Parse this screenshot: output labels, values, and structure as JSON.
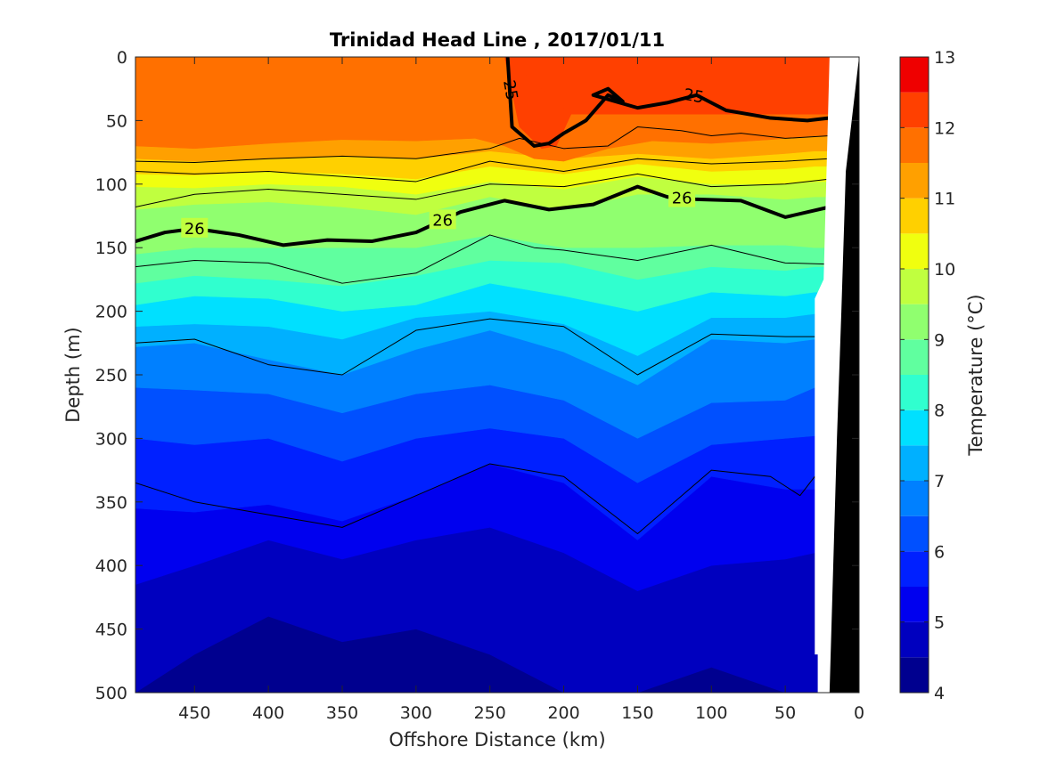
{
  "chart_data": {
    "type": "heatmap",
    "subtype": "filled contour section",
    "title": "Trinidad Head Line , 2017/01/11",
    "xlabel": "Offshore Distance (km)",
    "ylabel": "Depth (m)",
    "colorbar_label": "Temperature (°C)",
    "x_reversed": true,
    "y_reversed": true,
    "xlim": [
      0,
      490
    ],
    "ylim": [
      0,
      500
    ],
    "xticks": [
      "450",
      "400",
      "350",
      "300",
      "250",
      "200",
      "150",
      "100",
      "50",
      "0"
    ],
    "xtick_values": [
      450,
      400,
      350,
      300,
      250,
      200,
      150,
      100,
      50,
      0
    ],
    "yticks": [
      "0",
      "50",
      "100",
      "150",
      "200",
      "250",
      "300",
      "350",
      "400",
      "450",
      "500"
    ],
    "ytick_values": [
      0,
      50,
      100,
      150,
      200,
      250,
      300,
      350,
      400,
      450,
      500
    ],
    "clim": [
      4,
      13
    ],
    "colorbar_ticks": [
      "4",
      "5",
      "6",
      "7",
      "8",
      "9",
      "10",
      "11",
      "12",
      "13"
    ],
    "colorbar_tick_values": [
      4,
      5,
      6,
      7,
      8,
      9,
      10,
      11,
      12,
      13
    ],
    "levels": [
      4,
      4.5,
      5,
      5.5,
      6,
      6.5,
      7,
      7.5,
      8,
      8.5,
      9,
      9.5,
      10,
      10.5,
      11,
      11.5,
      12,
      12.5,
      13
    ],
    "colors": [
      "#00008f",
      "#0000bf",
      "#0000ef",
      "#0020ff",
      "#0050ff",
      "#0080ff",
      "#00b0ff",
      "#00e0ff",
      "#30ffcf",
      "#60ff9f",
      "#90ff6f",
      "#c0ff3f",
      "#f0ff0f",
      "#ffd000",
      "#ffa000",
      "#ff7000",
      "#ff4000",
      "#ef0000",
      "#bf0000"
    ],
    "temperature_boundaries": [
      {
        "value": 12.0,
        "x": [
          240,
          230,
          215,
          205,
          195
        ],
        "y": [
          0,
          55,
          72,
          70,
          45
        ]
      },
      {
        "value": 11.5,
        "x": [
          490,
          450,
          400,
          350,
          300,
          260,
          240,
          220,
          200,
          170,
          140,
          100,
          60,
          30
        ],
        "y": [
          70,
          72,
          68,
          65,
          66,
          64,
          70,
          80,
          82,
          72,
          66,
          68,
          65,
          62
        ]
      },
      {
        "value": 11.0,
        "x": [
          490,
          450,
          400,
          350,
          300,
          250,
          200,
          150,
          100,
          50,
          30
        ],
        "y": [
          80,
          82,
          80,
          78,
          80,
          74,
          80,
          76,
          80,
          76,
          74
        ]
      },
      {
        "value": 10.5,
        "x": [
          490,
          450,
          400,
          350,
          300,
          250,
          200,
          150,
          100,
          50,
          30
        ],
        "y": [
          92,
          93,
          90,
          92,
          96,
          86,
          92,
          84,
          90,
          88,
          86
        ]
      },
      {
        "value": 10.0,
        "x": [
          490,
          450,
          400,
          350,
          300,
          250,
          200,
          150,
          100,
          50,
          30
        ],
        "y": [
          102,
          103,
          100,
          102,
          108,
          98,
          104,
          94,
          100,
          100,
          98
        ]
      },
      {
        "value": 9.5,
        "x": [
          490,
          450,
          400,
          350,
          300,
          250,
          200,
          150,
          100,
          50,
          30
        ],
        "y": [
          120,
          116,
          114,
          118,
          124,
          110,
          120,
          108,
          108,
          112,
          110
        ]
      },
      {
        "value": 9.0,
        "x": [
          490,
          450,
          400,
          350,
          300,
          250,
          200,
          150,
          100,
          50,
          30
        ],
        "y": [
          155,
          150,
          150,
          150,
          150,
          140,
          150,
          150,
          148,
          148,
          150
        ]
      },
      {
        "value": 8.5,
        "x": [
          490,
          450,
          400,
          350,
          300,
          250,
          200,
          150,
          100,
          50,
          30
        ],
        "y": [
          178,
          172,
          175,
          180,
          172,
          160,
          162,
          175,
          165,
          168,
          165
        ]
      },
      {
        "value": 8.0,
        "x": [
          490,
          450,
          400,
          350,
          300,
          250,
          200,
          150,
          100,
          50,
          30
        ],
        "y": [
          195,
          188,
          190,
          200,
          195,
          178,
          188,
          200,
          185,
          188,
          185
        ]
      },
      {
        "value": 7.5,
        "x": [
          490,
          450,
          400,
          350,
          300,
          250,
          200,
          150,
          100,
          50,
          30
        ],
        "y": [
          212,
          210,
          212,
          222,
          205,
          200,
          210,
          235,
          205,
          205,
          202
        ]
      },
      {
        "value": 7.0,
        "x": [
          490,
          450,
          400,
          350,
          300,
          250,
          200,
          150,
          100,
          50,
          30
        ],
        "y": [
          228,
          225,
          238,
          250,
          230,
          215,
          232,
          258,
          222,
          225,
          222
        ]
      },
      {
        "value": 6.5,
        "x": [
          490,
          450,
          400,
          350,
          300,
          250,
          200,
          150,
          100,
          50,
          30
        ],
        "y": [
          260,
          262,
          265,
          280,
          265,
          258,
          270,
          300,
          272,
          270,
          260
        ]
      },
      {
        "value": 6.0,
        "x": [
          490,
          450,
          400,
          350,
          300,
          250,
          200,
          150,
          100,
          50,
          30
        ],
        "y": [
          300,
          305,
          300,
          318,
          300,
          292,
          300,
          335,
          305,
          300,
          298
        ]
      },
      {
        "value": 5.5,
        "x": [
          490,
          450,
          400,
          350,
          300,
          250,
          200,
          150,
          100,
          50,
          30
        ],
        "y": [
          355,
          358,
          352,
          365,
          345,
          320,
          335,
          380,
          330,
          340,
          340
        ]
      },
      {
        "value": 5.0,
        "x": [
          490,
          450,
          400,
          350,
          300,
          250,
          200,
          150,
          100,
          50,
          30
        ],
        "y": [
          415,
          400,
          380,
          395,
          380,
          370,
          390,
          420,
          400,
          395,
          390
        ]
      },
      {
        "value": 4.5,
        "x": [
          490,
          450,
          400,
          350,
          300,
          250,
          200,
          150,
          100,
          50,
          30
        ],
        "y": [
          500,
          470,
          440,
          460,
          450,
          470,
          500,
          500,
          480,
          500,
          500
        ]
      }
    ],
    "density_contours": [
      {
        "label": "",
        "x": [
          490,
          450,
          400,
          350,
          300,
          250,
          230,
          200,
          170,
          150,
          120,
          100,
          80,
          50,
          20
        ],
        "y": [
          82,
          83,
          80,
          78,
          80,
          72,
          64,
          72,
          70,
          55,
          58,
          62,
          60,
          64,
          62
        ]
      },
      {
        "label": "",
        "x": [
          490,
          450,
          400,
          350,
          300,
          250,
          200,
          150,
          100,
          50,
          20
        ],
        "y": [
          90,
          92,
          90,
          94,
          98,
          82,
          90,
          80,
          84,
          82,
          80
        ]
      },
      {
        "label": "",
        "x": [
          490,
          450,
          400,
          350,
          300,
          250,
          200,
          150,
          100,
          50,
          20
        ],
        "y": [
          118,
          108,
          104,
          108,
          112,
          100,
          102,
          92,
          102,
          100,
          96
        ]
      },
      {
        "label": "26",
        "x": [
          490,
          470,
          450,
          420,
          390,
          360,
          330,
          300,
          270,
          240,
          210,
          180,
          150,
          130,
          110,
          80,
          50,
          20
        ],
        "y": [
          145,
          138,
          135,
          140,
          148,
          144,
          145,
          138,
          122,
          113,
          120,
          116,
          102,
          110,
          112,
          113,
          126,
          118
        ]
      },
      {
        "label": "",
        "x": [
          490,
          450,
          400,
          350,
          300,
          250,
          220,
          200,
          150,
          100,
          50,
          20
        ],
        "y": [
          165,
          160,
          162,
          178,
          170,
          140,
          150,
          152,
          160,
          148,
          162,
          163
        ]
      },
      {
        "label": "",
        "x": [
          490,
          450,
          400,
          350,
          300,
          250,
          200,
          150,
          100,
          50,
          30
        ],
        "y": [
          225,
          222,
          242,
          250,
          215,
          206,
          212,
          250,
          218,
          220,
          220
        ]
      },
      {
        "label": "",
        "x": [
          490,
          450,
          400,
          350,
          300,
          250,
          200,
          150,
          100,
          60,
          40,
          30,
          25
        ],
        "y": [
          335,
          350,
          360,
          370,
          345,
          320,
          330,
          375,
          325,
          330,
          345,
          330,
          365
        ]
      }
    ],
    "isolated_contour_25": {
      "label": "25",
      "x": [
        238,
        235,
        220,
        210,
        200,
        185,
        170,
        160,
        170,
        180,
        150,
        130,
        110,
        90,
        60,
        35,
        20
      ],
      "y": [
        0,
        55,
        70,
        68,
        60,
        50,
        30,
        35,
        25,
        30,
        40,
        36,
        30,
        42,
        48,
        50,
        48
      ]
    },
    "bottom_profile_km": [
      0,
      2,
      5,
      9,
      12,
      15,
      18,
      20
    ],
    "bottom_profile_depth_m": [
      0,
      20,
      50,
      90,
      200,
      300,
      420,
      500
    ]
  }
}
